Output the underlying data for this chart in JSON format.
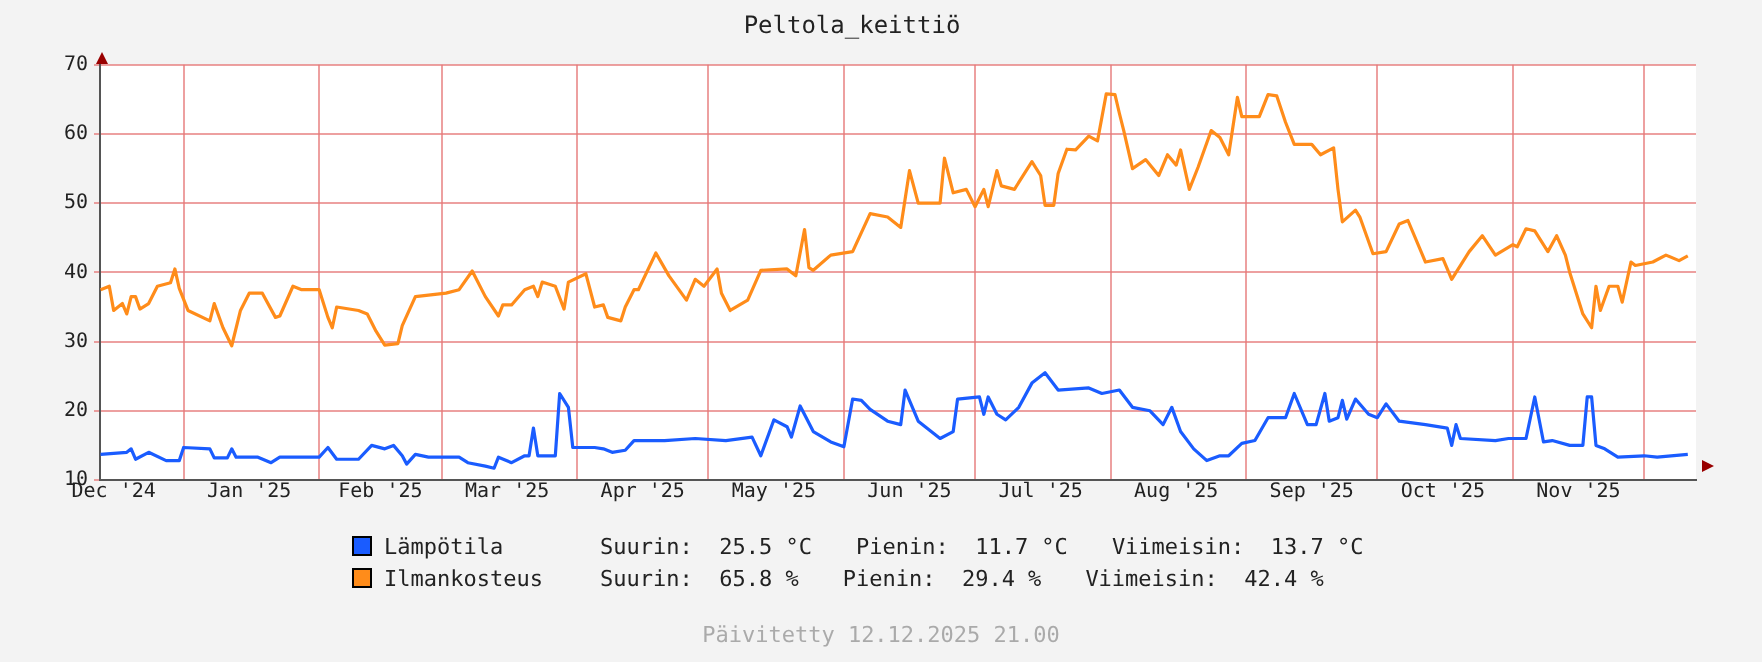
{
  "chart_data": {
    "type": "line",
    "title": "Peltola_keittiö",
    "xlim": [
      "2024-12-12T21:00",
      "2025-12-12T21:00"
    ],
    "xticks": [
      {
        "value": "2024-12-16",
        "label": "Dec '24"
      },
      {
        "value": "2025-01-01",
        "label": null
      },
      {
        "value": "2025-01-16",
        "label": "Jan '25"
      },
      {
        "value": "2025-02-01",
        "label": null
      },
      {
        "value": "2025-02-15",
        "label": "Feb '25"
      },
      {
        "value": "2025-03-01",
        "label": null
      },
      {
        "value": "2025-03-16",
        "label": "Mar '25"
      },
      {
        "value": "2025-04-01",
        "label": null
      },
      {
        "value": "2025-04-16",
        "label": "Apr '25"
      },
      {
        "value": "2025-05-01",
        "label": null
      },
      {
        "value": "2025-05-16",
        "label": "May '25"
      },
      {
        "value": "2025-06-01",
        "label": null
      },
      {
        "value": "2025-06-16",
        "label": "Jun '25"
      },
      {
        "value": "2025-07-01",
        "label": null
      },
      {
        "value": "2025-07-16",
        "label": "Jul '25"
      },
      {
        "value": "2025-08-01",
        "label": null
      },
      {
        "value": "2025-08-16",
        "label": "Aug '25"
      },
      {
        "value": "2025-09-01",
        "label": null
      },
      {
        "value": "2025-09-16",
        "label": "Sep '25"
      },
      {
        "value": "2025-10-01",
        "label": null
      },
      {
        "value": "2025-10-16",
        "label": "Oct '25"
      },
      {
        "value": "2025-11-01",
        "label": null
      },
      {
        "value": "2025-11-16",
        "label": "Nov '25"
      },
      {
        "value": "2025-12-01",
        "label": null
      }
    ],
    "ylim": [
      10,
      70
    ],
    "yticks": [
      10,
      20,
      30,
      40,
      50,
      60,
      70
    ],
    "grid": true,
    "legend": "bottom",
    "marker": "none",
    "series": [
      {
        "name": "Lämpötila",
        "color": "#1a5cff",
        "x": [
          "2024-12-13",
          "2024-12-19",
          "2024-12-20",
          "2024-12-21",
          "2024-12-24",
          "2024-12-28",
          "2024-12-31",
          "2025-01-01",
          "2025-01-07",
          "2025-01-08",
          "2025-01-11",
          "2025-01-12",
          "2025-01-13",
          "2025-01-18",
          "2025-01-21",
          "2025-01-23",
          "2025-02-01",
          "2025-02-03",
          "2025-02-05",
          "2025-02-10",
          "2025-02-13",
          "2025-02-16",
          "2025-02-18",
          "2025-02-20",
          "2025-02-21",
          "2025-02-23",
          "2025-02-26",
          "2025-03-05",
          "2025-03-07",
          "2025-03-11",
          "2025-03-13",
          "2025-03-14",
          "2025-03-17",
          "2025-03-20",
          "2025-03-21",
          "2025-03-22",
          "2025-03-23",
          "2025-03-27",
          "2025-03-28",
          "2025-03-30",
          "2025-03-31",
          "2025-04-05",
          "2025-04-07",
          "2025-04-09",
          "2025-04-12",
          "2025-04-14",
          "2025-04-21",
          "2025-04-28",
          "2025-05-05",
          "2025-05-11",
          "2025-05-13",
          "2025-05-16",
          "2025-05-19",
          "2025-05-20",
          "2025-05-22",
          "2025-05-25",
          "2025-05-29",
          "2025-06-01",
          "2025-06-03",
          "2025-06-05",
          "2025-06-07",
          "2025-06-11",
          "2025-06-14",
          "2025-06-15",
          "2025-06-18",
          "2025-06-23",
          "2025-06-26",
          "2025-06-27",
          "2025-07-02",
          "2025-07-03",
          "2025-07-04",
          "2025-07-06",
          "2025-07-08",
          "2025-07-11",
          "2025-07-14",
          "2025-07-17",
          "2025-07-20",
          "2025-07-27",
          "2025-07-30",
          "2025-08-03",
          "2025-08-06",
          "2025-08-10",
          "2025-08-13",
          "2025-08-15",
          "2025-08-17",
          "2025-08-20",
          "2025-08-23",
          "2025-08-26",
          "2025-08-28",
          "2025-08-31",
          "2025-09-03",
          "2025-09-06",
          "2025-09-10",
          "2025-09-12",
          "2025-09-15",
          "2025-09-17",
          "2025-09-19",
          "2025-09-20",
          "2025-09-22",
          "2025-09-23",
          "2025-09-24",
          "2025-09-26",
          "2025-09-29",
          "2025-10-01",
          "2025-10-03",
          "2025-10-06",
          "2025-10-12",
          "2025-10-17",
          "2025-10-18",
          "2025-10-19",
          "2025-10-20",
          "2025-10-28",
          "2025-10-31",
          "2025-11-04",
          "2025-11-06",
          "2025-11-08",
          "2025-11-10",
          "2025-11-14",
          "2025-11-17",
          "2025-11-18",
          "2025-11-19",
          "2025-11-20",
          "2025-11-22",
          "2025-11-25",
          "2025-12-01",
          "2025-12-04",
          "2025-12-11"
        ],
        "values": [
          13.7,
          14,
          14.5,
          13,
          14,
          12.8,
          12.8,
          14.7,
          14.5,
          13.2,
          13.2,
          14.5,
          13.3,
          13.3,
          12.5,
          13.3,
          13.3,
          14.7,
          13,
          13,
          15,
          14.5,
          15,
          13.5,
          12.3,
          13.7,
          13.3,
          13.3,
          12.5,
          12,
          11.7,
          13.3,
          12.5,
          13.5,
          13.5,
          17.5,
          13.5,
          13.5,
          22.5,
          20.5,
          14.7,
          14.7,
          14.5,
          14,
          14.3,
          15.7,
          15.7,
          16,
          15.7,
          16.2,
          13.5,
          18.7,
          17.7,
          16.2,
          20.7,
          17,
          15.5,
          14.8,
          21.7,
          21.5,
          20.2,
          18.5,
          18,
          23,
          18.5,
          16,
          17,
          21.7,
          22,
          19.5,
          22,
          19.5,
          18.7,
          20.5,
          24,
          25.5,
          23,
          23.3,
          22.5,
          23,
          20.5,
          20,
          18,
          20.5,
          17,
          14.5,
          12.8,
          13.5,
          13.5,
          15.3,
          15.7,
          19,
          19,
          22.5,
          18,
          18,
          22.5,
          18.5,
          19,
          21.5,
          18.8,
          21.7,
          19.5,
          19,
          21,
          18.5,
          18,
          17.5,
          15,
          18,
          16,
          15.7,
          16,
          16,
          22,
          15.5,
          15.7,
          15,
          15,
          22,
          22,
          15,
          14.5,
          13.3,
          13.5,
          13.3,
          13.7
        ]
      },
      {
        "name": "Ilmankosteus",
        "color": "#ff8c1a",
        "x": [
          "2024-12-13",
          "2024-12-15",
          "2024-12-16",
          "2024-12-18",
          "2024-12-19",
          "2024-12-20",
          "2024-12-21",
          "2024-12-22",
          "2024-12-24",
          "2024-12-26",
          "2024-12-29",
          "2024-12-30",
          "2024-12-31",
          "2025-01-02",
          "2025-01-07",
          "2025-01-08",
          "2025-01-10",
          "2025-01-12",
          "2025-01-14",
          "2025-01-16",
          "2025-01-19",
          "2025-01-22",
          "2025-01-23",
          "2025-01-26",
          "2025-01-28",
          "2025-02-01",
          "2025-02-03",
          "2025-02-04",
          "2025-02-05",
          "2025-02-10",
          "2025-02-12",
          "2025-02-14",
          "2025-02-16",
          "2025-02-19",
          "2025-02-20",
          "2025-02-23",
          "2025-03-02",
          "2025-03-05",
          "2025-03-08",
          "2025-03-11",
          "2025-03-14",
          "2025-03-15",
          "2025-03-17",
          "2025-03-20",
          "2025-03-22",
          "2025-03-23",
          "2025-03-24",
          "2025-03-27",
          "2025-03-29",
          "2025-03-30",
          "2025-04-03",
          "2025-04-05",
          "2025-04-07",
          "2025-04-08",
          "2025-04-11",
          "2025-04-12",
          "2025-04-14",
          "2025-04-15",
          "2025-04-19",
          "2025-04-22",
          "2025-04-26",
          "2025-04-28",
          "2025-04-30",
          "2025-05-03",
          "2025-05-04",
          "2025-05-06",
          "2025-05-10",
          "2025-05-13",
          "2025-05-19",
          "2025-05-21",
          "2025-05-23",
          "2025-05-24",
          "2025-05-25",
          "2025-05-29",
          "2025-06-03",
          "2025-06-07",
          "2025-06-11",
          "2025-06-14",
          "2025-06-16",
          "2025-06-18",
          "2025-06-23",
          "2025-06-24",
          "2025-06-26",
          "2025-06-29",
          "2025-07-01",
          "2025-07-03",
          "2025-07-04",
          "2025-07-06",
          "2025-07-07",
          "2025-07-10",
          "2025-07-14",
          "2025-07-16",
          "2025-07-17",
          "2025-07-19",
          "2025-07-20",
          "2025-07-22",
          "2025-07-24",
          "2025-07-27",
          "2025-07-29",
          "2025-07-31",
          "2025-08-02",
          "2025-08-03",
          "2025-08-04",
          "2025-08-06",
          "2025-08-09",
          "2025-08-12",
          "2025-08-14",
          "2025-08-16",
          "2025-08-17",
          "2025-08-19",
          "2025-08-21",
          "2025-08-24",
          "2025-08-26",
          "2025-08-28",
          "2025-08-30",
          "2025-08-31",
          "2025-09-04",
          "2025-09-06",
          "2025-09-08",
          "2025-09-10",
          "2025-09-12",
          "2025-09-16",
          "2025-09-18",
          "2025-09-21",
          "2025-09-22",
          "2025-09-23",
          "2025-09-26",
          "2025-09-27",
          "2025-09-30",
          "2025-10-03",
          "2025-10-06",
          "2025-10-08",
          "2025-10-12",
          "2025-10-16",
          "2025-10-18",
          "2025-10-22",
          "2025-10-25",
          "2025-10-28",
          "2025-11-01",
          "2025-11-02",
          "2025-11-04",
          "2025-11-06",
          "2025-11-09",
          "2025-11-11",
          "2025-11-13",
          "2025-11-14",
          "2025-11-17",
          "2025-11-19",
          "2025-11-20",
          "2025-11-21",
          "2025-11-23",
          "2025-11-25",
          "2025-11-26",
          "2025-11-28",
          "2025-11-29",
          "2025-12-03",
          "2025-12-06",
          "2025-12-09",
          "2025-12-11"
        ],
        "values": [
          37.5,
          38,
          34.5,
          35.5,
          34,
          36.5,
          36.5,
          34.7,
          35.5,
          38,
          38.5,
          40.5,
          37.7,
          34.5,
          33,
          35.5,
          32,
          29.4,
          34.5,
          37,
          37,
          33.5,
          33.7,
          38,
          37.5,
          37.5,
          33.5,
          32,
          35,
          34.5,
          34,
          31.5,
          29.5,
          29.7,
          32.3,
          36.5,
          37,
          37.5,
          40.2,
          36.5,
          33.7,
          35.3,
          35.3,
          37.5,
          38,
          36.5,
          38.6,
          38,
          34.7,
          38.6,
          39.8,
          35,
          35.3,
          33.5,
          33,
          35,
          37.5,
          37.5,
          42.8,
          39.5,
          36,
          39,
          38,
          40.5,
          37,
          34.5,
          36,
          40.3,
          40.5,
          39.5,
          46.2,
          40.7,
          40.3,
          42.5,
          43,
          48.5,
          48,
          46.5,
          54.7,
          50,
          50,
          56.5,
          51.5,
          52,
          49.5,
          52,
          49.5,
          54.7,
          52.5,
          52,
          56,
          54,
          49.7,
          49.7,
          54.3,
          57.8,
          57.7,
          59.7,
          59,
          65.8,
          65.7,
          63,
          60.5,
          55,
          56.3,
          54,
          57,
          55.5,
          57.7,
          52,
          55.2,
          60.5,
          59.5,
          57,
          65.3,
          62.5,
          62.5,
          65.7,
          65.5,
          61.7,
          58.5,
          58.5,
          57,
          58,
          52,
          47.3,
          49,
          48,
          42.7,
          43,
          47,
          47.5,
          41.5,
          42,
          39,
          43,
          45.3,
          42.5,
          44,
          43.7,
          46.3,
          46,
          43,
          45.3,
          42.5,
          40,
          34,
          32,
          38,
          34.5,
          38,
          38,
          35.7,
          41.5,
          41,
          41.5,
          42.5,
          41.7,
          42.4
        ]
      }
    ],
    "annotations": [
      "Suurin:  25.5 °C",
      "Pienin:  11.7 °C",
      "Viimeisin:  13.7 °C",
      "Suurin:  65.8 %",
      "Pienin:  29.4 %",
      "Viimeisin:  42.4 %",
      "Päivitetty 12.12.2025 21.00"
    ]
  }
}
